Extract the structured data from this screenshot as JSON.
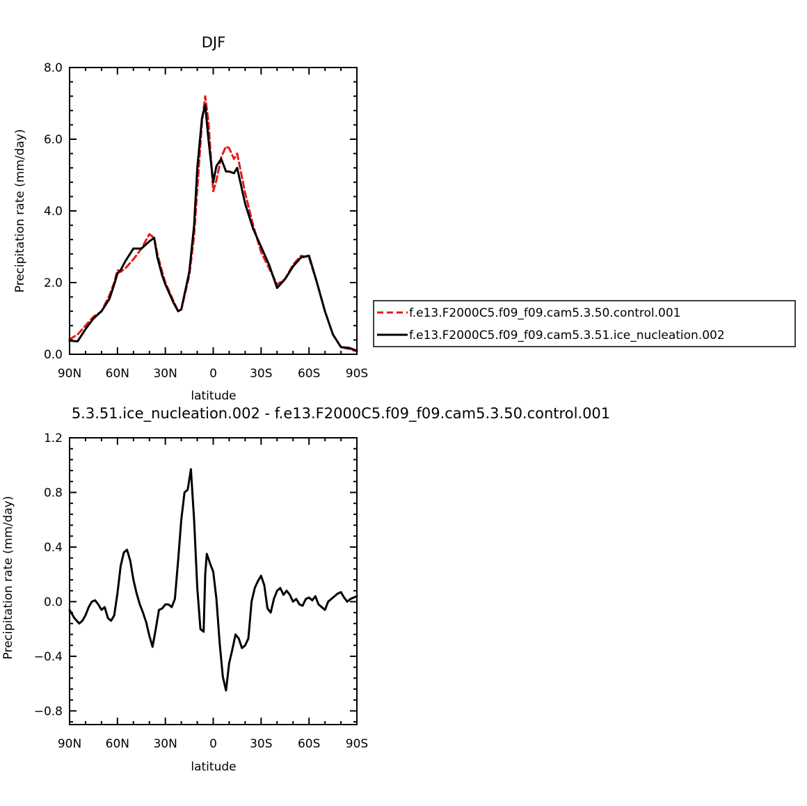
{
  "chart_data": [
    {
      "type": "line",
      "title": "DJF",
      "xlabel": "latitude",
      "ylabel": "Precipitation rate (mm/day)",
      "xlim": [
        -90,
        90
      ],
      "ylim": [
        0,
        8
      ],
      "x_ticks": [
        "90N",
        "60N",
        "30N",
        "0",
        "30S",
        "60S",
        "90S"
      ],
      "y_ticks": [
        "0.0",
        "2.0",
        "4.0",
        "6.0",
        "8.0"
      ],
      "legend_position": "right",
      "series": [
        {
          "name": "f.e13.F2000C5.f09_f09.cam5.3.50.control.001",
          "color": "#e31a1c",
          "dash": "dashed",
          "x": [
            -90,
            -85,
            -80,
            -75,
            -70,
            -65,
            -62,
            -60,
            -58,
            -55,
            -50,
            -45,
            -40,
            -37,
            -35,
            -32,
            -30,
            -25,
            -22,
            -20,
            -15,
            -12,
            -10,
            -7,
            -5,
            -3,
            0,
            2,
            5,
            8,
            10,
            13,
            15,
            20,
            25,
            30,
            35,
            40,
            45,
            50,
            55,
            60,
            65,
            70,
            75,
            80,
            85,
            90
          ],
          "y": [
            0.42,
            0.55,
            0.8,
            1.05,
            1.2,
            1.65,
            2.0,
            2.35,
            2.3,
            2.4,
            2.65,
            2.95,
            3.35,
            3.25,
            2.8,
            2.3,
            2.0,
            1.5,
            1.2,
            1.25,
            2.2,
            3.3,
            4.6,
            6.5,
            7.2,
            6.5,
            4.55,
            4.85,
            5.5,
            5.8,
            5.75,
            5.45,
            5.6,
            4.5,
            3.6,
            2.85,
            2.4,
            1.95,
            2.1,
            2.5,
            2.75,
            2.7,
            2.0,
            1.2,
            0.55,
            0.2,
            0.15,
            0.08
          ]
        },
        {
          "name": "f.e13.F2000C5.f09_f09.cam5.3.51.ice_nucleation.002",
          "color": "#000000",
          "dash": "solid",
          "x": [
            -90,
            -85,
            -80,
            -75,
            -70,
            -65,
            -62,
            -60,
            -58,
            -55,
            -50,
            -45,
            -40,
            -37,
            -35,
            -32,
            -30,
            -25,
            -22,
            -20,
            -15,
            -12,
            -10,
            -7,
            -5,
            -3,
            0,
            2,
            5,
            8,
            10,
            13,
            15,
            20,
            25,
            30,
            35,
            40,
            45,
            50,
            55,
            60,
            65,
            70,
            75,
            80,
            85,
            90
          ],
          "y": [
            0.38,
            0.36,
            0.7,
            1.0,
            1.2,
            1.55,
            1.95,
            2.25,
            2.35,
            2.6,
            2.95,
            2.95,
            3.15,
            3.25,
            2.7,
            2.2,
            1.95,
            1.45,
            1.2,
            1.25,
            2.3,
            3.6,
            5.2,
            6.6,
            6.95,
            6.0,
            4.8,
            5.25,
            5.45,
            5.1,
            5.1,
            5.05,
            5.2,
            4.2,
            3.5,
            3.0,
            2.5,
            1.85,
            2.1,
            2.45,
            2.7,
            2.75,
            2.0,
            1.2,
            0.55,
            0.2,
            0.18,
            0.1
          ]
        }
      ]
    },
    {
      "type": "line",
      "title": "5.3.51.ice_nucleation.002 - f.e13.F2000C5.f09_f09.cam5.3.50.control.001",
      "xlabel": "latitude",
      "ylabel": "Precipitation rate (mm/day)",
      "xlim": [
        -90,
        90
      ],
      "ylim": [
        -0.9,
        1.2
      ],
      "x_ticks": [
        "90N",
        "60N",
        "30N",
        "0",
        "30S",
        "60S",
        "90S"
      ],
      "y_ticks": [
        "−0.8",
        "−0.4",
        "0.0",
        "0.4",
        "0.8",
        "1.2"
      ],
      "series": [
        {
          "color": "#000000",
          "dash": "solid",
          "x": [
            -90,
            -87,
            -84,
            -82,
            -80,
            -78,
            -76,
            -74,
            -72,
            -70,
            -68,
            -66,
            -64,
            -62,
            -60,
            -58,
            -56,
            -54,
            -52,
            -50,
            -48,
            -46,
            -44,
            -42,
            -40,
            -38,
            -36,
            -34,
            -32,
            -30,
            -28,
            -26,
            -24,
            -22,
            -20,
            -18,
            -16,
            -14,
            -12,
            -10,
            -8,
            -6,
            -5,
            -4,
            -2,
            0,
            2,
            4,
            6,
            8,
            10,
            12,
            14,
            16,
            18,
            20,
            22,
            24,
            26,
            28,
            30,
            32,
            34,
            36,
            38,
            40,
            42,
            44,
            46,
            48,
            50,
            52,
            54,
            56,
            58,
            60,
            62,
            64,
            66,
            68,
            70,
            72,
            74,
            76,
            78,
            80,
            82,
            84,
            86,
            88,
            90
          ],
          "y": [
            -0.06,
            -0.12,
            -0.16,
            -0.14,
            -0.1,
            -0.04,
            0.0,
            0.01,
            -0.02,
            -0.06,
            -0.04,
            -0.12,
            -0.14,
            -0.1,
            0.06,
            0.26,
            0.36,
            0.38,
            0.3,
            0.16,
            0.06,
            -0.02,
            -0.08,
            -0.15,
            -0.25,
            -0.33,
            -0.2,
            -0.06,
            -0.05,
            -0.02,
            -0.02,
            -0.04,
            0.02,
            0.3,
            0.6,
            0.8,
            0.82,
            0.97,
            0.6,
            0.1,
            -0.2,
            -0.22,
            0.2,
            0.35,
            0.28,
            0.22,
            0.02,
            -0.3,
            -0.55,
            -0.65,
            -0.45,
            -0.35,
            -0.24,
            -0.27,
            -0.34,
            -0.32,
            -0.27,
            0.0,
            0.1,
            0.15,
            0.19,
            0.12,
            -0.05,
            -0.08,
            0.02,
            0.08,
            0.1,
            0.05,
            0.08,
            0.05,
            0.0,
            0.02,
            -0.02,
            -0.03,
            0.02,
            0.03,
            0.01,
            0.04,
            -0.02,
            -0.04,
            -0.06,
            0.0,
            0.02,
            0.04,
            0.06,
            0.07,
            0.03,
            0.0,
            0.02,
            0.03,
            0.04
          ]
        }
      ]
    }
  ]
}
